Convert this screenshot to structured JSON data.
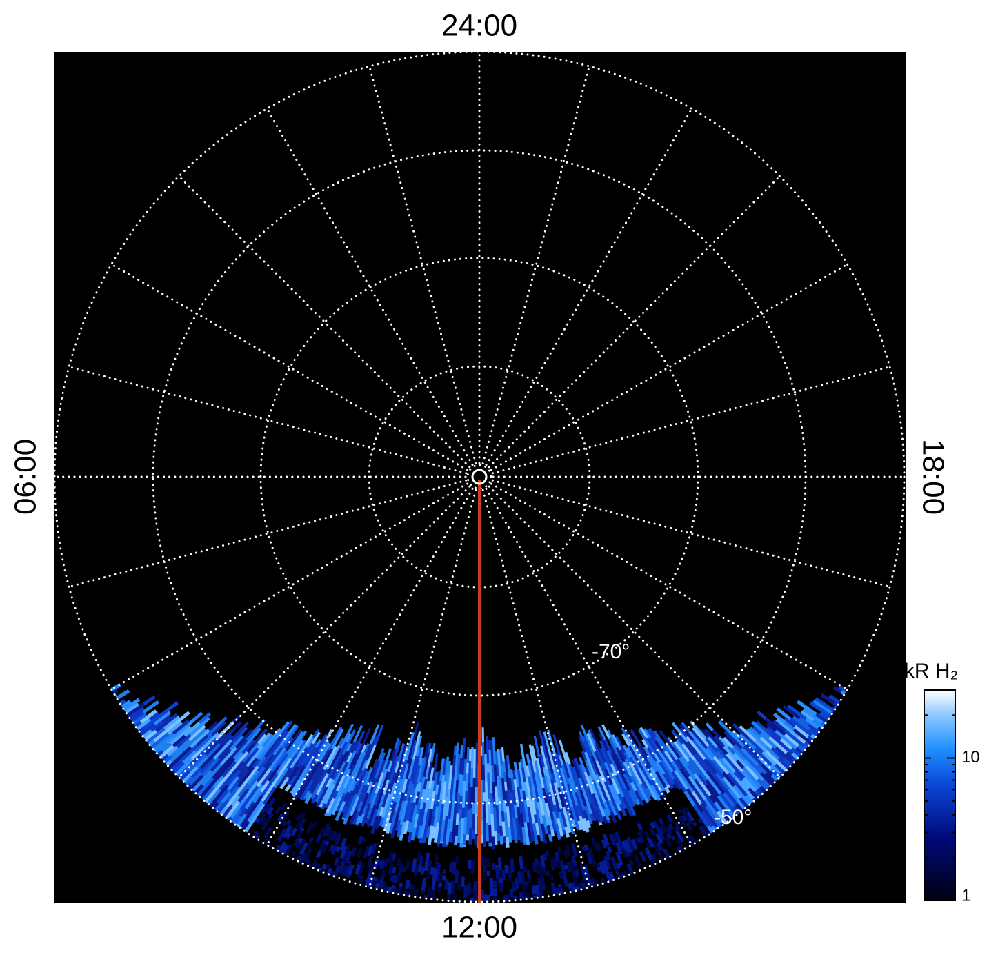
{
  "local_time_labels": {
    "top": "24:00",
    "bottom": "12:00",
    "left": "06:00",
    "right": "18:00"
  },
  "latitude_labels": [
    "-70°",
    "-50°"
  ],
  "colorbar": {
    "title": "kR H₂",
    "lim": [
      1,
      30
    ],
    "ticks": [
      1,
      10
    ],
    "log": true
  }
}
